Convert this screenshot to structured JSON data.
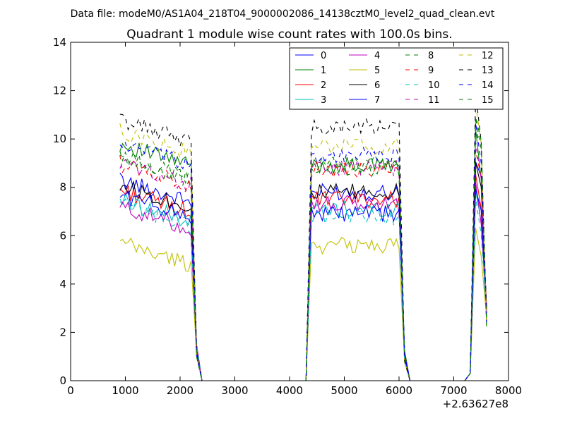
{
  "chart_data": {
    "type": "line",
    "suptitle": "Data file: modeM0/AS1A04_218T04_9000002086_14138cztM0_level2_quad_clean.evt",
    "title": "Quadrant 1 module wise count rates with 100.0s bins.",
    "xlabel": "",
    "ylabel": "",
    "xlim": [
      0,
      8000
    ],
    "ylim": [
      0,
      14
    ],
    "x_offset_label": "+2.63627e8",
    "xticks": [
      0,
      1000,
      2000,
      3000,
      4000,
      5000,
      6000,
      7000,
      8000
    ],
    "yticks": [
      0,
      2,
      4,
      6,
      8,
      10,
      12,
      14
    ],
    "grid": false,
    "legend": {
      "placement": "top-right",
      "columns": 4
    },
    "segments": [
      {
        "x_start": 900,
        "x_end": 2200,
        "gap_x": [
          2300,
          2400
        ],
        "post_x": 2400
      },
      {
        "x_start": 4300,
        "x_end": 6000,
        "gap_x": [
          6100,
          6200
        ],
        "post_x": 6200
      },
      {
        "x_start": 7200,
        "x_end": 7600
      }
    ],
    "series": [
      {
        "name": "0",
        "color": "#0000ff",
        "dash": false,
        "level1": 8.3,
        "level2": 7.8,
        "level3": 9.4
      },
      {
        "name": "1",
        "color": "#008000",
        "dash": false,
        "level1": 9.8,
        "level2": 8.9,
        "level3": 10.2
      },
      {
        "name": "2",
        "color": "#ff0000",
        "dash": false,
        "level1": 7.9,
        "level2": 7.5,
        "level3": 8.5
      },
      {
        "name": "3",
        "color": "#00bfbf",
        "dash": false,
        "level1": 7.5,
        "level2": 7.1,
        "level3": 8.0
      },
      {
        "name": "4",
        "color": "#bf00bf",
        "dash": false,
        "level1": 7.2,
        "level2": 7.3,
        "level3": 8.3
      },
      {
        "name": "5",
        "color": "#bfbf00",
        "dash": false,
        "level1": 5.7,
        "level2": 5.6,
        "level3": 6.3
      },
      {
        "name": "6",
        "color": "#000000",
        "dash": false,
        "level1": 8.1,
        "level2": 7.8,
        "level3": 9.0
      },
      {
        "name": "7",
        "color": "#0000ff",
        "dash": false,
        "level1": 7.7,
        "level2": 6.9,
        "level3": 8.1
      },
      {
        "name": "8",
        "color": "#008000",
        "dash": true,
        "level1": 9.3,
        "level2": 9.0,
        "level3": 10.5
      },
      {
        "name": "9",
        "color": "#ff0000",
        "dash": true,
        "level1": 9.0,
        "level2": 8.7,
        "level3": 9.8
      },
      {
        "name": "10",
        "color": "#00bfbf",
        "dash": true,
        "level1": 7.3,
        "level2": 6.8,
        "level3": 7.8
      },
      {
        "name": "11",
        "color": "#bf00bf",
        "dash": true,
        "level1": 9.0,
        "level2": 8.8,
        "level3": 9.9
      },
      {
        "name": "12",
        "color": "#bfbf00",
        "dash": true,
        "level1": 10.3,
        "level2": 9.7,
        "level3": 11.3
      },
      {
        "name": "13",
        "color": "#000000",
        "dash": true,
        "level1": 10.8,
        "level2": 10.5,
        "level3": 11.6
      },
      {
        "name": "14",
        "color": "#0000ff",
        "dash": true,
        "level1": 9.8,
        "level2": 9.3,
        "level3": 10.6
      },
      {
        "name": "15",
        "color": "#008000",
        "dash": true,
        "level1": 9.2,
        "level2": 8.8,
        "level3": 10.9
      }
    ]
  }
}
